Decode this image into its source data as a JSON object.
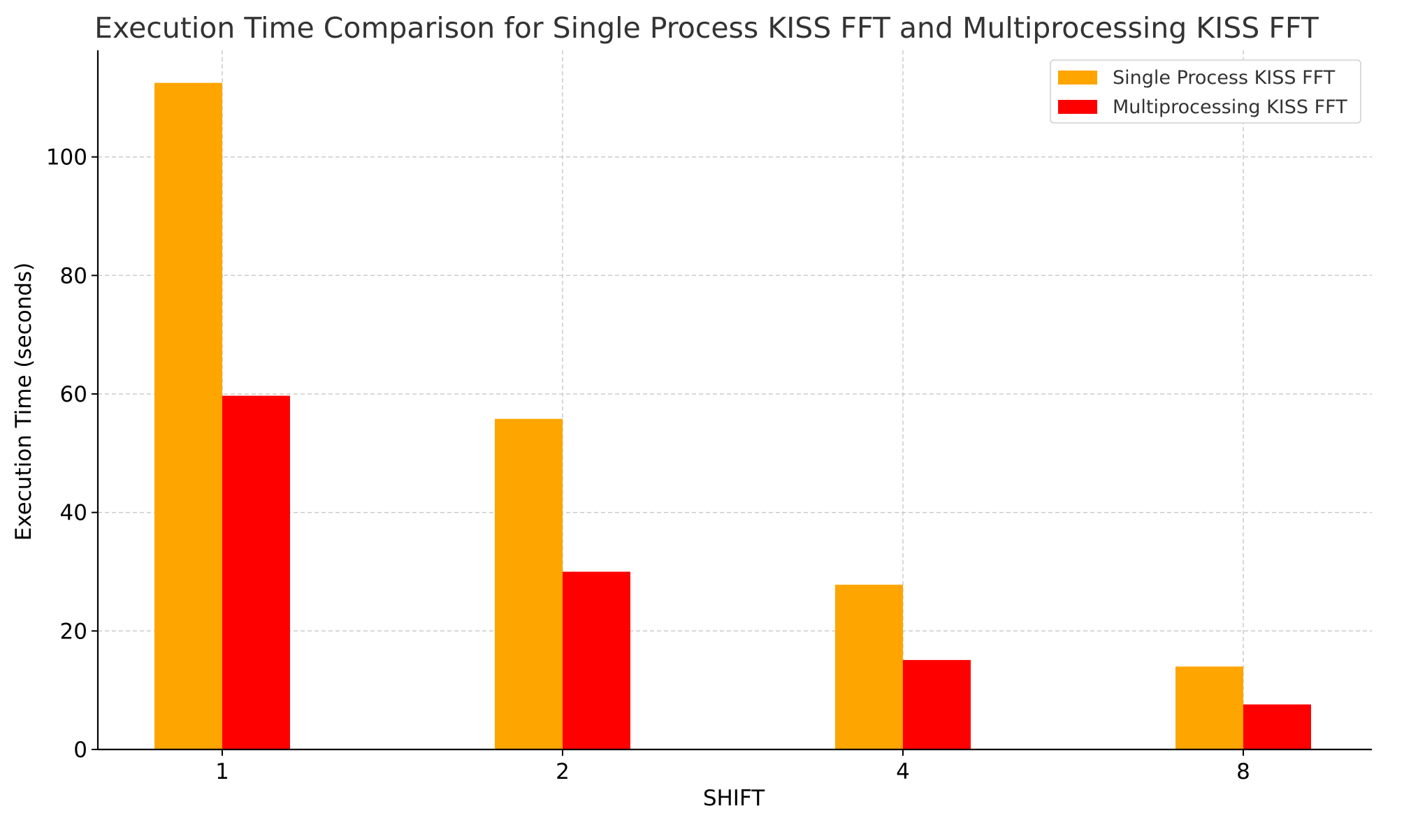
{
  "chart_data": {
    "type": "bar",
    "title": "Execution Time Comparison for Single Process KISS FFT and Multiprocessing KISS FFT",
    "xlabel": "SHIFT",
    "ylabel": "Execution Time (seconds)",
    "categories": [
      "1",
      "2",
      "4",
      "8"
    ],
    "series": [
      {
        "name": "Single Process KISS FFT",
        "color": "#FFA500",
        "values": [
          112.5,
          55.8,
          27.8,
          14.0
        ]
      },
      {
        "name": "Multiprocessing KISS FFT",
        "color": "#FF0000",
        "values": [
          59.7,
          30.0,
          15.1,
          7.6
        ]
      }
    ],
    "ylim": [
      0,
      118
    ],
    "yticks": [
      0,
      20,
      40,
      60,
      80,
      100
    ],
    "grid": true,
    "legend_position": "top-right"
  }
}
